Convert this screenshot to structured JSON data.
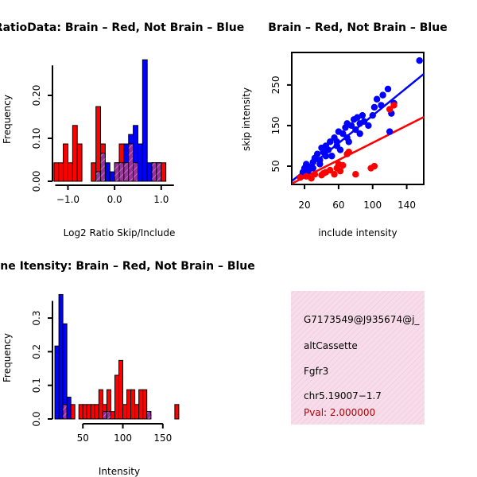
{
  "colors": {
    "red": "#ff0000",
    "blue": "#0000ff",
    "overlap": "#9b30a0",
    "hatch": "#e8a0c8",
    "info_bg": "#f7dcea",
    "pval": "#b00000"
  },
  "chart_data": [
    {
      "id": "ratio",
      "type": "bar",
      "title": "RatioData: Brain – Red, Not Brain – Blue",
      "xlabel": "Log2 Ratio Skip/Include",
      "ylabel": "Frequency",
      "xlim": [
        -1.4,
        1.6
      ],
      "ylim": [
        0,
        0.3
      ],
      "xticks": [
        -1.0,
        0.0,
        1.0
      ],
      "xtick_labels": [
        "−1.0",
        "0.0",
        "1.0"
      ],
      "yticks": [
        0.0,
        0.1,
        0.2
      ],
      "ytick_labels": [
        "0.00",
        "0.10",
        "0.20"
      ],
      "bin_width": 0.1,
      "bins_start": [
        -1.3,
        -1.2,
        -1.1,
        -1.0,
        -0.9,
        -0.8,
        -0.7,
        -0.6,
        -0.5,
        -0.4,
        -0.3,
        -0.2,
        -0.1,
        0.0,
        0.1,
        0.2,
        0.3,
        0.4,
        0.5,
        0.6,
        0.7,
        0.8,
        0.9,
        1.0,
        1.1,
        1.2,
        1.3
      ],
      "series": [
        {
          "name": "Brain",
          "color": "red",
          "values": [
            0.043,
            0.043,
            0.087,
            0.043,
            0.13,
            0.087,
            0,
            0,
            0.043,
            0.174,
            0.087,
            0,
            0,
            0.043,
            0.087,
            0.043,
            0.087,
            0.043,
            0,
            0,
            0,
            0.043,
            0.043,
            0.043,
            0,
            0,
            0
          ]
        },
        {
          "name": "Not Brain",
          "color": "blue",
          "values": [
            0,
            0,
            0,
            0,
            0,
            0,
            0,
            0,
            0,
            0.022,
            0.065,
            0.043,
            0.022,
            0.043,
            0.043,
            0.087,
            0.109,
            0.13,
            0.087,
            0.283,
            0.043,
            0.043,
            0.043,
            0,
            0,
            0,
            0
          ]
        }
      ]
    },
    {
      "id": "scatter",
      "type": "scatter",
      "title": "Brain – Red, Not Brain – Blue",
      "xlabel": "include intensity",
      "ylabel": "skip intensity",
      "xlim": [
        5,
        160
      ],
      "ylim": [
        5,
        330
      ],
      "xticks": [
        20,
        60,
        100,
        140
      ],
      "xtick_labels": [
        "20",
        "60",
        "100",
        "140"
      ],
      "yticks": [
        50,
        150,
        250
      ],
      "ytick_labels": [
        "50",
        "150",
        "250"
      ],
      "series": [
        {
          "name": "Not Brain",
          "color": "blue",
          "points": [
            [
              18,
              35
            ],
            [
              20,
              45
            ],
            [
              22,
              55
            ],
            [
              25,
              40
            ],
            [
              28,
              50
            ],
            [
              30,
              60
            ],
            [
              32,
              70
            ],
            [
              35,
              80
            ],
            [
              38,
              65
            ],
            [
              40,
              95
            ],
            [
              42,
              85
            ],
            [
              45,
              100
            ],
            [
              48,
              90
            ],
            [
              50,
              110
            ],
            [
              52,
              75
            ],
            [
              55,
              120
            ],
            [
              58,
              100
            ],
            [
              60,
              135
            ],
            [
              62,
              90
            ],
            [
              65,
              130
            ],
            [
              68,
              145
            ],
            [
              70,
              120
            ],
            [
              72,
              110
            ],
            [
              75,
              150
            ],
            [
              78,
              165
            ],
            [
              80,
              140
            ],
            [
              82,
              170
            ],
            [
              85,
              155
            ],
            [
              88,
              175
            ],
            [
              90,
              160
            ],
            [
              95,
              150
            ],
            [
              100,
              175
            ],
            [
              102,
              195
            ],
            [
              105,
              215
            ],
            [
              110,
              200
            ],
            [
              112,
              225
            ],
            [
              118,
              240
            ],
            [
              120,
              135
            ],
            [
              122,
              180
            ],
            [
              125,
              205
            ],
            [
              155,
              310
            ],
            [
              45,
              75
            ],
            [
              58,
              110
            ],
            [
              70,
              155
            ],
            [
              85,
              130
            ],
            [
              38,
              55
            ],
            [
              30,
              45
            ],
            [
              24,
              38
            ]
          ]
        },
        {
          "name": "Brain",
          "color": "red",
          "points": [
            [
              15,
              22
            ],
            [
              22,
              25
            ],
            [
              28,
              20
            ],
            [
              32,
              30
            ],
            [
              40,
              28
            ],
            [
              45,
              35
            ],
            [
              50,
              40
            ],
            [
              55,
              30
            ],
            [
              58,
              45
            ],
            [
              62,
              38
            ],
            [
              65,
              52
            ],
            [
              70,
              80
            ],
            [
              72,
              85
            ],
            [
              80,
              30
            ],
            [
              98,
              45
            ],
            [
              102,
              50
            ],
            [
              120,
              190
            ],
            [
              125,
              200
            ],
            [
              60,
              55
            ],
            [
              42,
              32
            ]
          ]
        }
      ],
      "fits": [
        {
          "name": "Not Brain",
          "color": "blue",
          "x": [
            5,
            160
          ],
          "y": [
            13,
            277
          ]
        },
        {
          "name": "Brain",
          "color": "red",
          "x": [
            5,
            160
          ],
          "y": [
            7,
            171
          ]
        }
      ]
    },
    {
      "id": "intensity",
      "type": "bar",
      "title": "Gene Itensity: Brain – Red, Not Brain – Blue",
      "xlabel": "Intensity",
      "ylabel": "Frequency",
      "xlim": [
        5,
        185
      ],
      "ylim": [
        0,
        0.39
      ],
      "xticks": [
        50,
        100,
        150
      ],
      "xtick_labels": [
        "50",
        "100",
        "150"
      ],
      "yticks": [
        0.0,
        0.1,
        0.2,
        0.3
      ],
      "ytick_labels": [
        "0.0",
        "0.1",
        "0.2",
        "0.3"
      ],
      "bin_width": 5,
      "bins_start": [
        15,
        20,
        25,
        30,
        35,
        40,
        45,
        50,
        55,
        60,
        65,
        70,
        75,
        80,
        85,
        90,
        95,
        100,
        105,
        110,
        115,
        120,
        125,
        130,
        135,
        140,
        145,
        150,
        155,
        160,
        165,
        170,
        175
      ],
      "series": [
        {
          "name": "Brain",
          "color": "red",
          "values": [
            0,
            0,
            0.043,
            0,
            0.043,
            0,
            0.043,
            0.043,
            0.043,
            0.043,
            0.043,
            0.087,
            0.043,
            0.087,
            0.022,
            0.13,
            0.174,
            0.043,
            0.087,
            0.087,
            0.043,
            0.087,
            0.087,
            0.022,
            0,
            0,
            0,
            0,
            0,
            0,
            0.043,
            0,
            0
          ]
        },
        {
          "name": "Not Brain",
          "color": "blue",
          "values": [
            0.217,
            0.37,
            0.283,
            0.065,
            0,
            0,
            0,
            0,
            0,
            0,
            0,
            0,
            0.022,
            0.022,
            0,
            0,
            0,
            0,
            0,
            0,
            0,
            0,
            0,
            0.022,
            0,
            0,
            0,
            0,
            0,
            0,
            0,
            0,
            0
          ]
        }
      ]
    }
  ],
  "info": {
    "event_id": "G7173549@J935674@j_",
    "event_type": "altCassette",
    "gene": "Fgfr3",
    "location": "chr5.19007−1.7",
    "pval": "Pval: 2.000000"
  }
}
